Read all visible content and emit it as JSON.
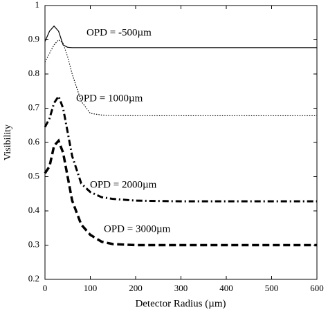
{
  "chart_data": {
    "type": "line",
    "x_label": "Detector Radius (µm)",
    "y_label": "Visibility",
    "x": [
      0,
      10,
      20,
      30,
      40,
      50,
      60,
      80,
      100,
      125,
      150,
      200,
      300,
      400,
      500,
      600
    ],
    "series": [
      {
        "name": "OPD = -500µm",
        "color": "#000000",
        "style": "solid",
        "values": [
          0.895,
          0.925,
          0.94,
          0.925,
          0.885,
          0.878,
          0.877,
          0.877,
          0.877,
          0.877,
          0.877,
          0.877,
          0.877,
          0.877,
          0.877,
          0.877
        ]
      },
      {
        "name": "OPD = 1000µm",
        "color": "#000000",
        "style": "dotted",
        "values": [
          0.835,
          0.86,
          0.885,
          0.9,
          0.89,
          0.85,
          0.8,
          0.72,
          0.685,
          0.68,
          0.679,
          0.678,
          0.678,
          0.678,
          0.678,
          0.678
        ]
      },
      {
        "name": "OPD = 2000µm",
        "color": "#000000",
        "style": "dashdot",
        "values": [
          0.645,
          0.67,
          0.715,
          0.735,
          0.7,
          0.63,
          0.56,
          0.48,
          0.455,
          0.44,
          0.435,
          0.43,
          0.428,
          0.428,
          0.428,
          0.428
        ]
      },
      {
        "name": "OPD = 3000µm",
        "color": "#000000",
        "style": "dashed",
        "values": [
          0.51,
          0.53,
          0.59,
          0.605,
          0.57,
          0.5,
          0.43,
          0.36,
          0.33,
          0.31,
          0.303,
          0.3,
          0.3,
          0.3,
          0.3,
          0.3
        ]
      }
    ],
    "xlim": [
      0,
      600
    ],
    "xticks": [
      0,
      100,
      200,
      300,
      400,
      500,
      600
    ],
    "ylim": [
      0.2,
      1
    ],
    "yticks": [
      0.2,
      0.3,
      0.4,
      0.5,
      0.6,
      0.7,
      0.8,
      0.9,
      1
    ]
  }
}
